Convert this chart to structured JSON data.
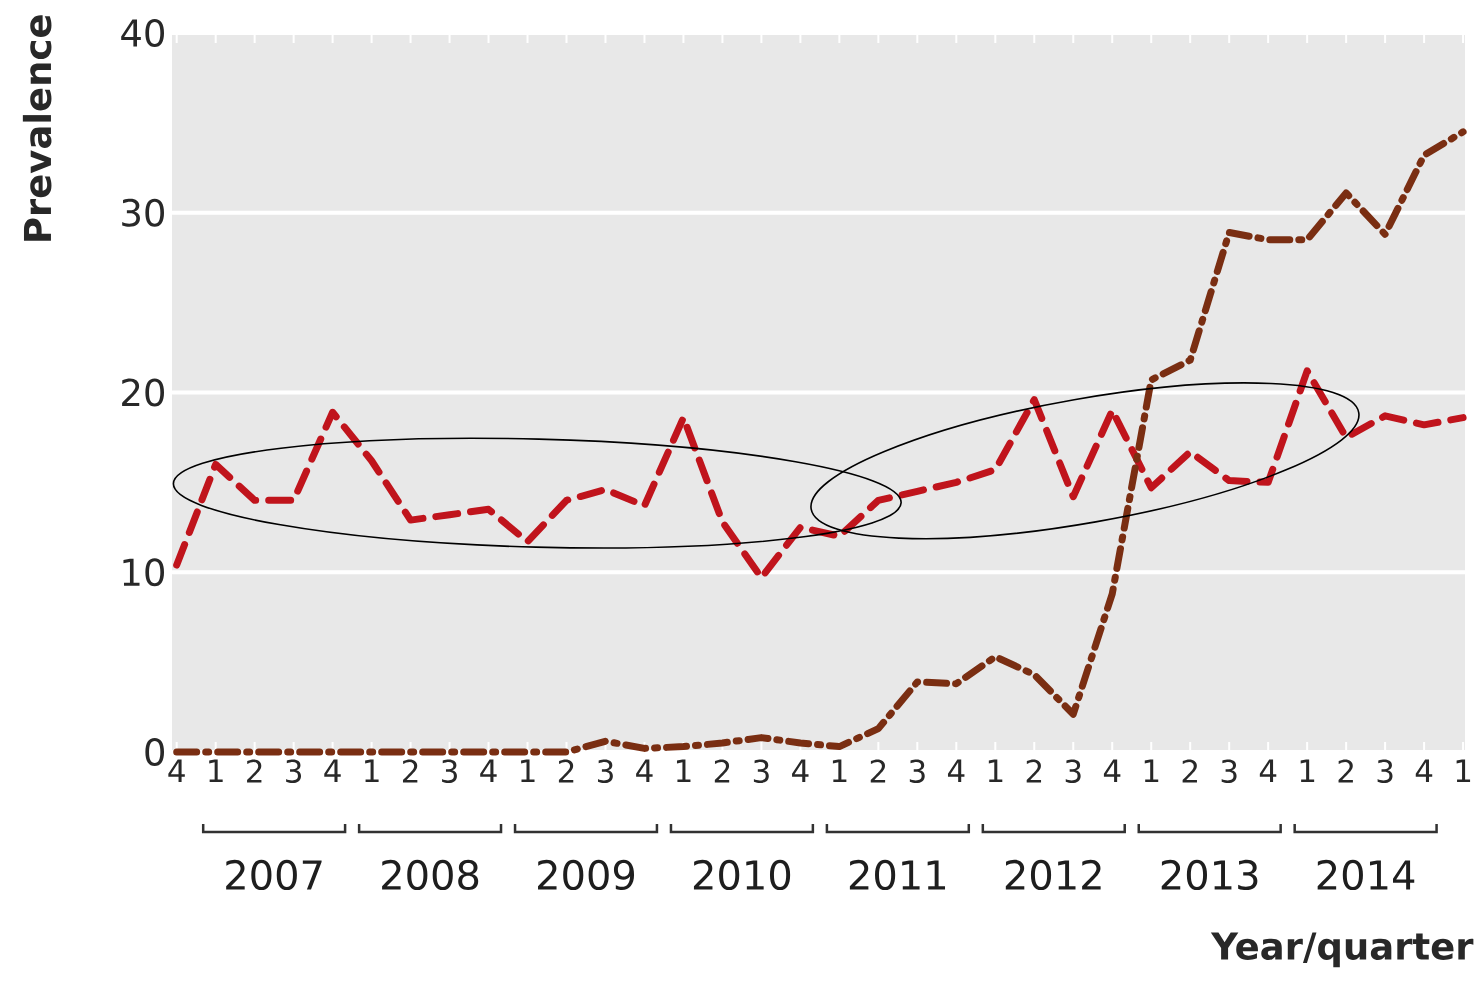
{
  "chart_data": {
    "type": "line",
    "xlabel": "Year/quarter",
    "ylabel": "Prevalence",
    "categories": [
      "4",
      "1",
      "2",
      "3",
      "4",
      "1",
      "2",
      "3",
      "4",
      "1",
      "2",
      "3",
      "4",
      "1",
      "2",
      "3",
      "4",
      "1",
      "2",
      "3",
      "4",
      "1",
      "2",
      "3",
      "4",
      "1",
      "2",
      "3",
      "4",
      "1",
      "2",
      "3",
      "4",
      "1"
    ],
    "series": [
      {
        "color": "#c0141c",
        "line_style": "dashed",
        "values": [
          10.4,
          16.0,
          14.0,
          14.0,
          18.9,
          16.2,
          12.9,
          13.2,
          13.5,
          11.7,
          14.0,
          14.6,
          13.7,
          18.6,
          12.8,
          9.7,
          12.5,
          12.0,
          14.0,
          14.5,
          15.0,
          15.7,
          19.6,
          14.2,
          19.0,
          14.7,
          16.7,
          15.1,
          15.0,
          21.2,
          17.5,
          18.7,
          18.2,
          18.6
        ]
      },
      {
        "color": "#7a2e12",
        "line_style": "dashdot",
        "values": [
          0,
          0,
          0,
          0,
          0,
          0,
          0,
          0,
          0,
          0,
          0,
          0.6,
          0.2,
          0.3,
          0.5,
          0.8,
          0.5,
          0.3,
          1.3,
          3.9,
          3.8,
          5.3,
          4.3,
          2.1,
          8.8,
          20.7,
          21.8,
          28.9,
          28.5,
          28.5,
          31.1,
          28.8,
          33.2,
          34.5
        ]
      }
    ],
    "ylim": [
      0,
      40
    ],
    "yticks": [
      0,
      10,
      20,
      30,
      40
    ],
    "grid": "y",
    "annotations": [
      "2007",
      "2008",
      "2009",
      "2010",
      "2011",
      "2012",
      "2013",
      "2014"
    ]
  }
}
